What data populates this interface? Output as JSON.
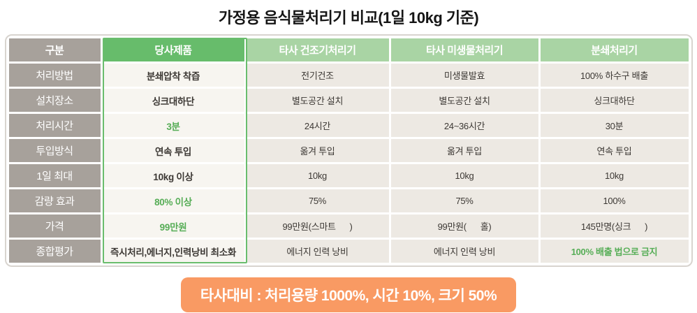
{
  "title": "가정용 음식물처리기 비교(1일 10kg 기준)",
  "table": {
    "corner_label": "구분",
    "columns": [
      {
        "label": "당사제품",
        "highlight": true
      },
      {
        "label": "타사 건조기처리기",
        "highlight": false
      },
      {
        "label": "타사 미생물처리기",
        "highlight": false
      },
      {
        "label": "분쇄처리기",
        "highlight": false
      }
    ],
    "rows": [
      {
        "label": "처리방법",
        "cells": [
          "분쇄압착 착즙",
          "전기건조",
          "미생물발효",
          "100% 하수구 배출"
        ]
      },
      {
        "label": "설치장소",
        "cells": [
          "싱크대하단",
          "별도공간 설치",
          "별도공간 설치",
          "싱크대하단"
        ]
      },
      {
        "label": "처리시간",
        "cells": [
          "3분",
          "24시간",
          "24~36시간",
          "30분"
        ]
      },
      {
        "label": "투입방식",
        "cells": [
          "연속 투입",
          "옮겨 투입",
          "옮겨 투입",
          "연속 투입"
        ]
      },
      {
        "label": "1일 최대",
        "cells": [
          "10kg 이상",
          "10kg",
          "10kg",
          "10kg"
        ]
      },
      {
        "label": "감량 효과",
        "cells": [
          "80% 이상",
          "75%",
          "75%",
          "100%"
        ]
      },
      {
        "label": "가격",
        "cells": [
          "99만원",
          "99만원(스마트      )",
          "99만원(      홀)",
          "145만명(싱크      )"
        ]
      },
      {
        "label": "종합평가",
        "cells": [
          "즉시처리,에너지,인력낭비 최소화",
          "에너지 인력 낭비",
          "에너지 인력 낭비",
          "100% 배출 법으로 금지"
        ]
      }
    ]
  },
  "banner": {
    "text": "타사대비 : 처리용량 1000%, 시간 10%, 크기 50%"
  },
  "colors": {
    "label_gray": "#a7a19b",
    "header_green": "#67bc6b",
    "header_light_green": "#a9d4a4",
    "accent_green": "#56ad56",
    "banner_orange": "#f99a63",
    "outline_green": "#6abd6d"
  }
}
